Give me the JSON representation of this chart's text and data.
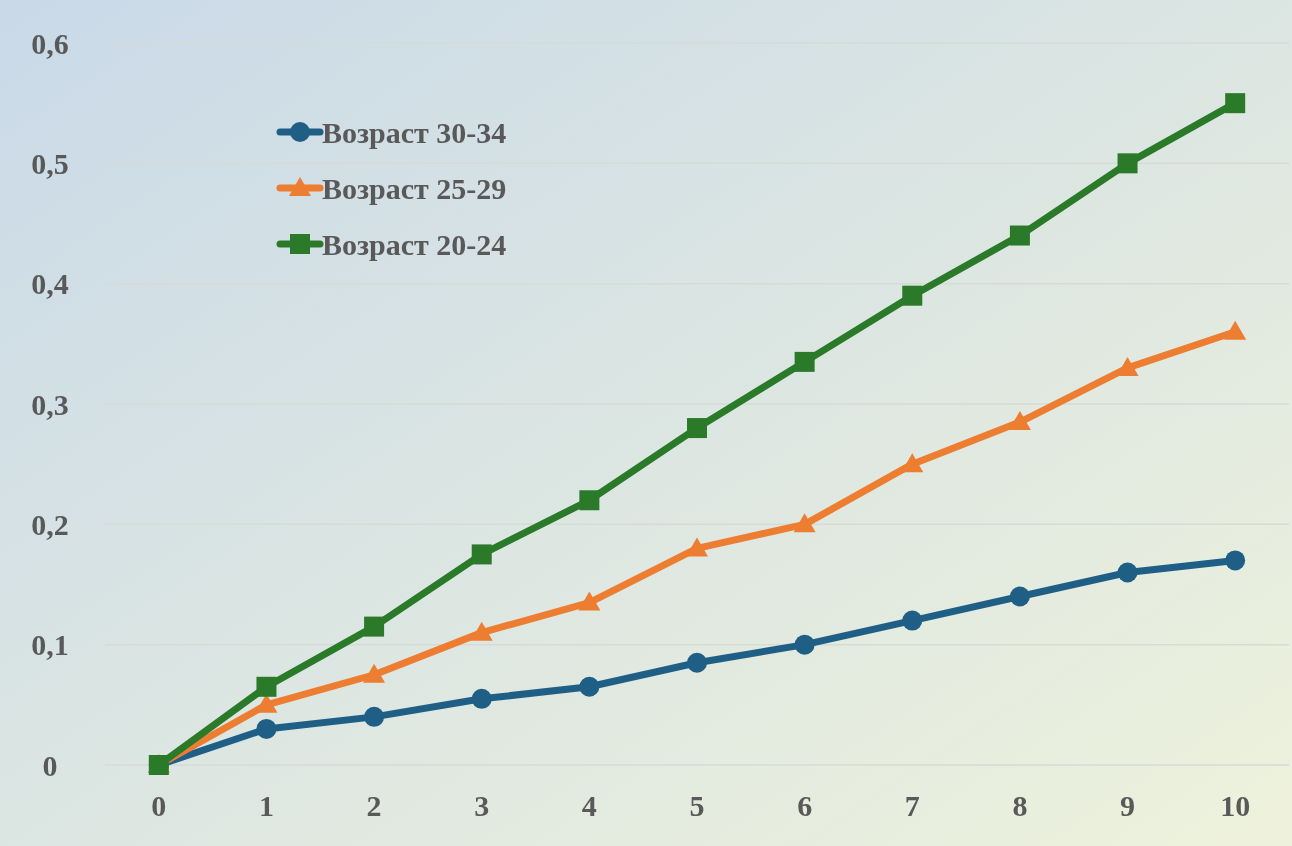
{
  "chart_data": {
    "type": "line",
    "categories": [
      "0",
      "1",
      "2",
      "3",
      "4",
      "5",
      "6",
      "7",
      "8",
      "9",
      "10"
    ],
    "series": [
      {
        "name": "Возраст 30-34",
        "color": "#1f5f86",
        "marker": "circle",
        "values": [
          0,
          0.03,
          0.04,
          0.055,
          0.065,
          0.085,
          0.1,
          0.12,
          0.14,
          0.16,
          0.17
        ]
      },
      {
        "name": "Возраст 25-29",
        "color": "#ed7d31",
        "marker": "triangle",
        "values": [
          0,
          0.05,
          0.075,
          0.11,
          0.135,
          0.18,
          0.2,
          0.25,
          0.285,
          0.33,
          0.36
        ]
      },
      {
        "name": "Возраст 20-24",
        "color": "#2a7a2a",
        "marker": "square",
        "values": [
          0,
          0.065,
          0.115,
          0.175,
          0.22,
          0.28,
          0.335,
          0.39,
          0.44,
          0.5,
          0.55
        ]
      }
    ],
    "ylim": [
      0,
      0.6
    ],
    "yticks": [
      0,
      {
        "value": 0.1,
        "label": "0,1"
      },
      {
        "value": 0.2,
        "label": "0,2"
      },
      {
        "value": 0.3,
        "label": "0,3"
      },
      {
        "value": 0.4,
        "label": "0,4"
      },
      {
        "value": 0.5,
        "label": "0,5"
      },
      {
        "value": 0.6,
        "label": "0,6"
      }
    ],
    "grid": "y",
    "legend": "top left",
    "line_style": "solid"
  }
}
